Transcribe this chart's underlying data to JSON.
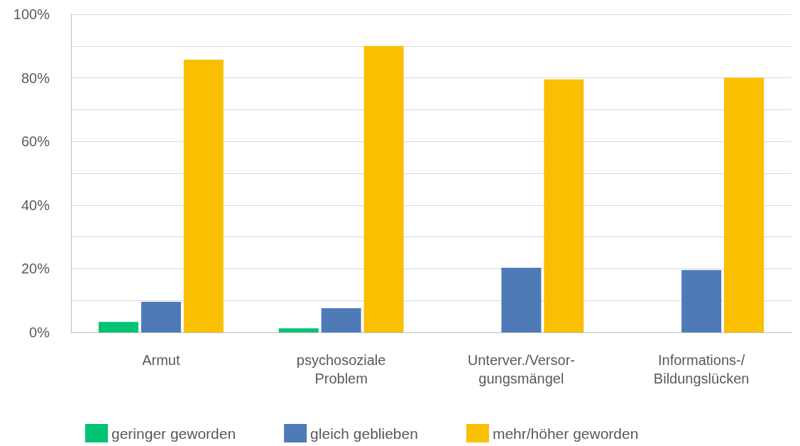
{
  "chart_data": {
    "type": "bar",
    "categories": [
      "Armut",
      "psychosoziale\nProblem",
      "Unterver./Versor-\ngungsmängel",
      "Informations-/\nBildungslücken"
    ],
    "series": [
      {
        "name": "geringer geworden",
        "color": "#00c373",
        "values": [
          3.3,
          1.3,
          0,
          0
        ]
      },
      {
        "name": "gleich geblieben",
        "color": "#4f7ab8",
        "values": [
          9.6,
          7.6,
          20.3,
          19.6
        ]
      },
      {
        "name": "mehr/höher geworden",
        "color": "#f9bf00",
        "values": [
          85.7,
          90,
          79.5,
          80
        ]
      }
    ],
    "ylim": [
      0,
      100
    ],
    "yticks": [
      {
        "value": 0,
        "label": "0%"
      },
      {
        "value": 10,
        "label": null
      },
      {
        "value": 20,
        "label": "20%"
      },
      {
        "value": 30,
        "label": null
      },
      {
        "value": 40,
        "label": "40%"
      },
      {
        "value": 50,
        "label": null
      },
      {
        "value": 60,
        "label": "60%"
      },
      {
        "value": 70,
        "label": null
      },
      {
        "value": 80,
        "label": "80%"
      },
      {
        "value": 90,
        "label": null
      },
      {
        "value": 100,
        "label": "100%"
      }
    ],
    "grid": "y",
    "legend": "bottom"
  }
}
